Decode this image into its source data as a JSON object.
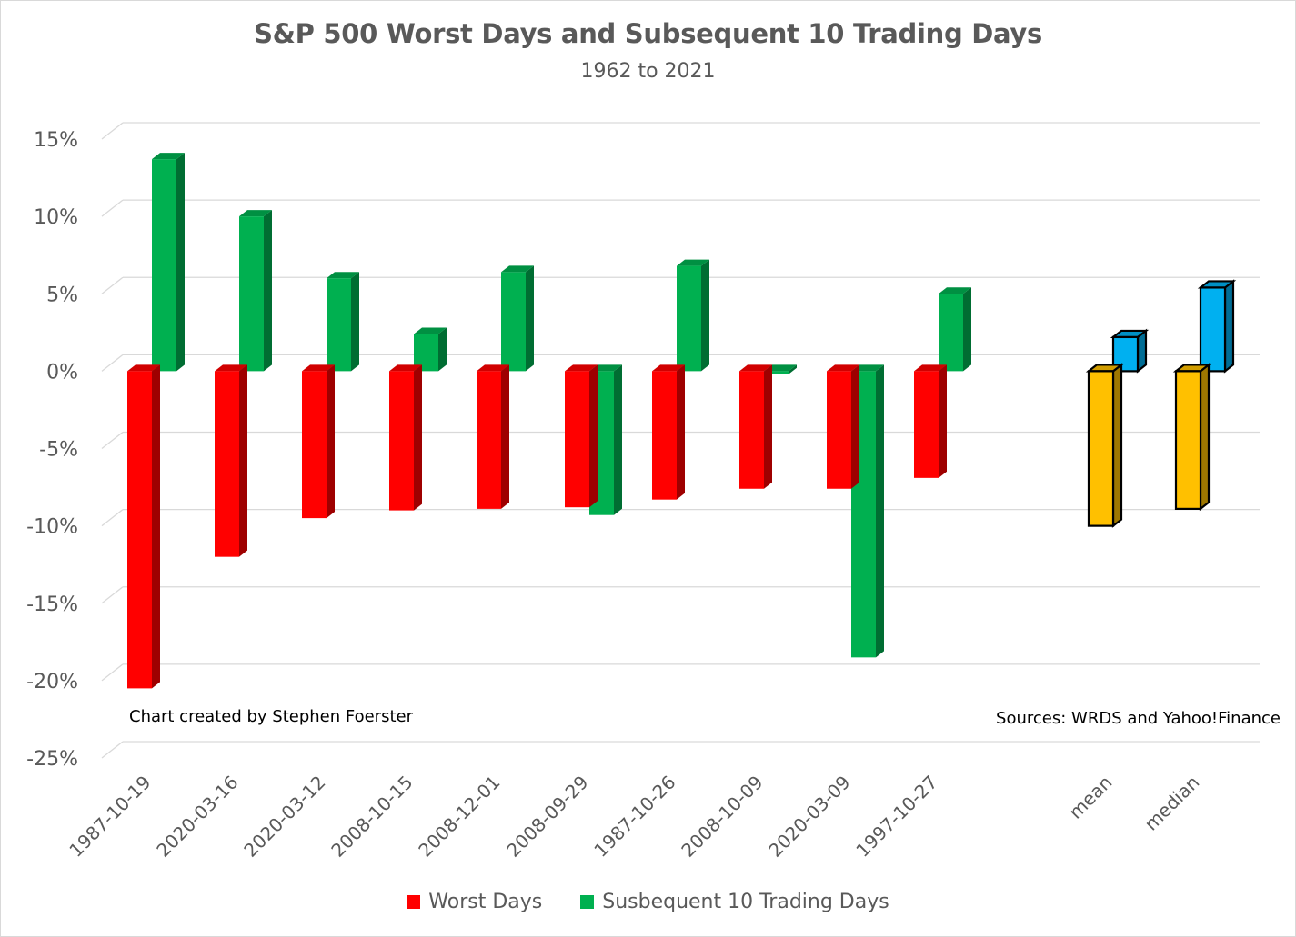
{
  "chart_data": {
    "type": "bar",
    "title": "S&P 500 Worst Days and Subsequent 10 Trading Days",
    "subtitle": "1962 to 2021",
    "categories": [
      "1987-10-19",
      "2020-03-16",
      "2020-03-12",
      "2008-10-15",
      "2008-12-01",
      "2008-09-29",
      "1987-10-26",
      "2008-10-09",
      "2020-03-09",
      "1997-10-27",
      "mean",
      "median"
    ],
    "series": [
      {
        "name": "Worst Days",
        "color": "#ff0000",
        "values": [
          -20.5,
          -12.0,
          -9.5,
          -9.0,
          -8.9,
          -8.8,
          -8.3,
          -7.6,
          -7.6,
          -6.9,
          -10.0,
          -8.9
        ],
        "summary_color": "#ffc000"
      },
      {
        "name": "Susbequent 10 Trading Days",
        "color": "#00b050",
        "values": [
          13.7,
          10.0,
          6.0,
          2.4,
          6.4,
          -9.3,
          6.8,
          -0.2,
          -18.5,
          5.0,
          2.2,
          5.4
        ],
        "summary_color": "#00b0f0"
      }
    ],
    "ylim": [
      -25,
      15
    ],
    "yticks": [
      "-25%",
      "-20%",
      "-15%",
      "-10%",
      "-5%",
      "0%",
      "5%",
      "10%",
      "15%"
    ],
    "ytick_values": [
      -25,
      -20,
      -15,
      -10,
      -5,
      0,
      5,
      10,
      15
    ],
    "grid": true,
    "legend": "bottom",
    "annotations": [
      "Chart created by Stephen Foerster",
      "Sources: WRDS and Yahoo!Finance"
    ]
  }
}
